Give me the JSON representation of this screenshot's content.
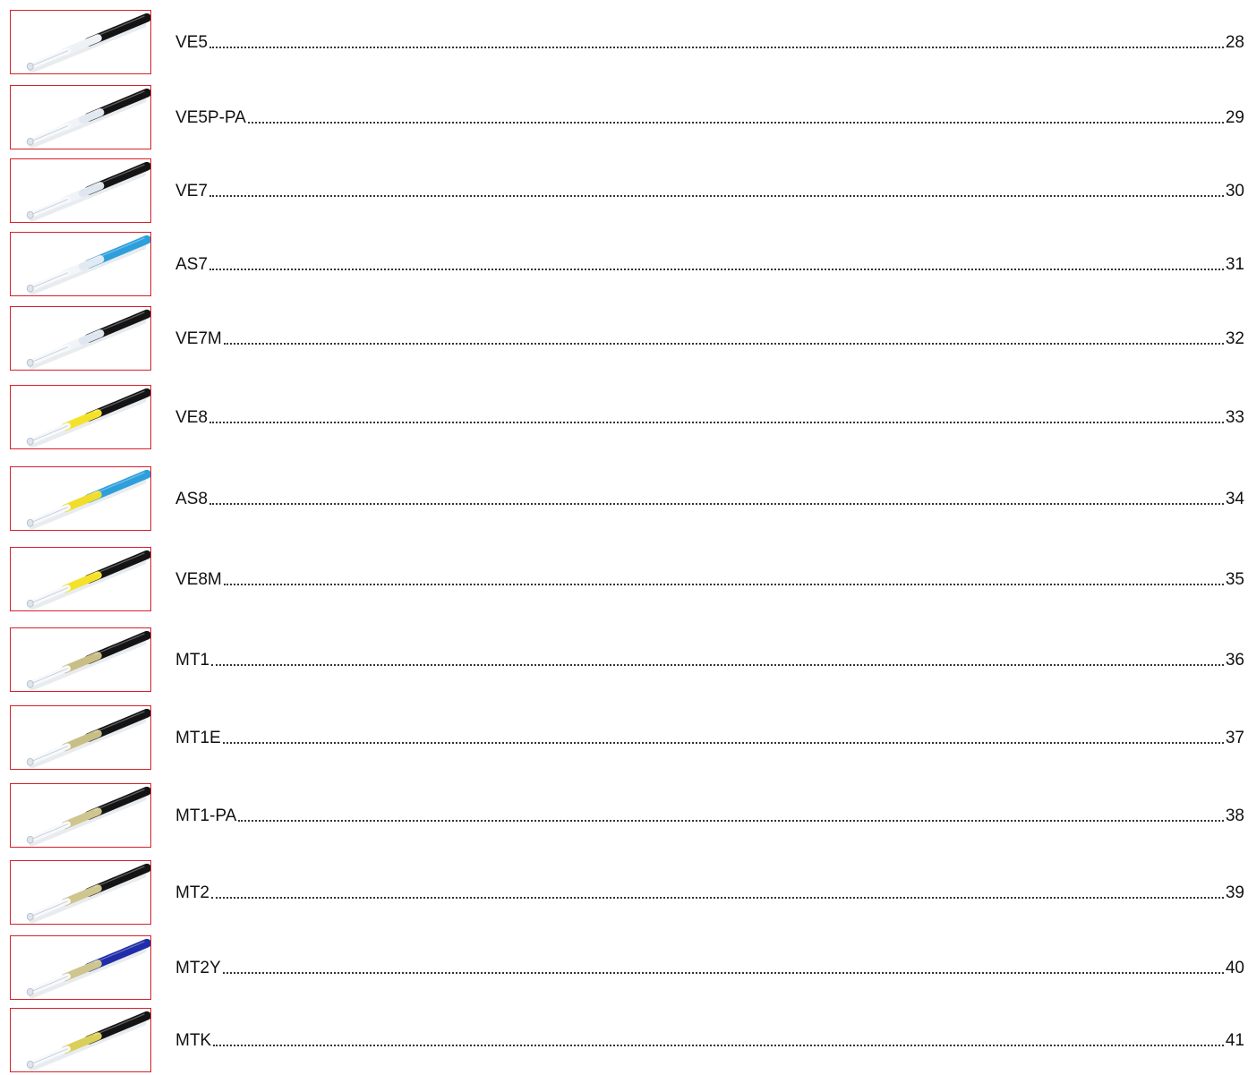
{
  "toc": {
    "entries": [
      {
        "name": "VE5",
        "page": "28",
        "thumb": {
          "hose": "#141414",
          "bands": [
            "#eef2f7"
          ]
        }
      },
      {
        "name": "VE5P-PA",
        "page": "29",
        "thumb": {
          "hose": "#141414",
          "bands": [
            "#f0f3f8",
            "#e3e9f1"
          ]
        }
      },
      {
        "name": "VE7",
        "page": "30",
        "thumb": {
          "hose": "#141414",
          "bands": [
            "#f0f3f8",
            "#dfe6ef"
          ]
        }
      },
      {
        "name": "AS7",
        "page": "31",
        "thumb": {
          "hose": "#2f9fdc",
          "bands": [
            "#f2f5f9",
            "#e3e9f1"
          ]
        }
      },
      {
        "name": "VE7M",
        "page": "32",
        "thumb": {
          "hose": "#141414",
          "bands": [
            "#f0f3f8",
            "#dfe6ef"
          ]
        }
      },
      {
        "name": "VE8",
        "page": "33",
        "thumb": {
          "hose": "#141414",
          "bands": [
            "#f4e22a"
          ]
        }
      },
      {
        "name": "AS8",
        "page": "34",
        "thumb": {
          "hose": "#2f9fdc",
          "bands": [
            "#f0dd2c"
          ]
        }
      },
      {
        "name": "VE8M",
        "page": "35",
        "thumb": {
          "hose": "#141414",
          "bands": [
            "#f4e22a"
          ]
        }
      },
      {
        "name": "MT1",
        "page": "36",
        "thumb": {
          "hose": "#141414",
          "bands": [
            "#c9bf86"
          ]
        }
      },
      {
        "name": "MT1E",
        "page": "37",
        "thumb": {
          "hose": "#141414",
          "bands": [
            "#c9bf86"
          ]
        }
      },
      {
        "name": "MT1-PA",
        "page": "38",
        "thumb": {
          "hose": "#141414",
          "bands": [
            "#cfc58e"
          ]
        }
      },
      {
        "name": "MT2",
        "page": "39",
        "thumb": {
          "hose": "#141414",
          "bands": [
            "#cfc58e"
          ]
        }
      },
      {
        "name": "MT2Y",
        "page": "40",
        "thumb": {
          "hose": "#1f2da8",
          "bands": [
            "#cfc58e"
          ]
        }
      },
      {
        "name": "MTK",
        "page": "41",
        "thumb": {
          "hose": "#141414",
          "bands": [
            "#d9cf5a"
          ]
        }
      }
    ]
  }
}
